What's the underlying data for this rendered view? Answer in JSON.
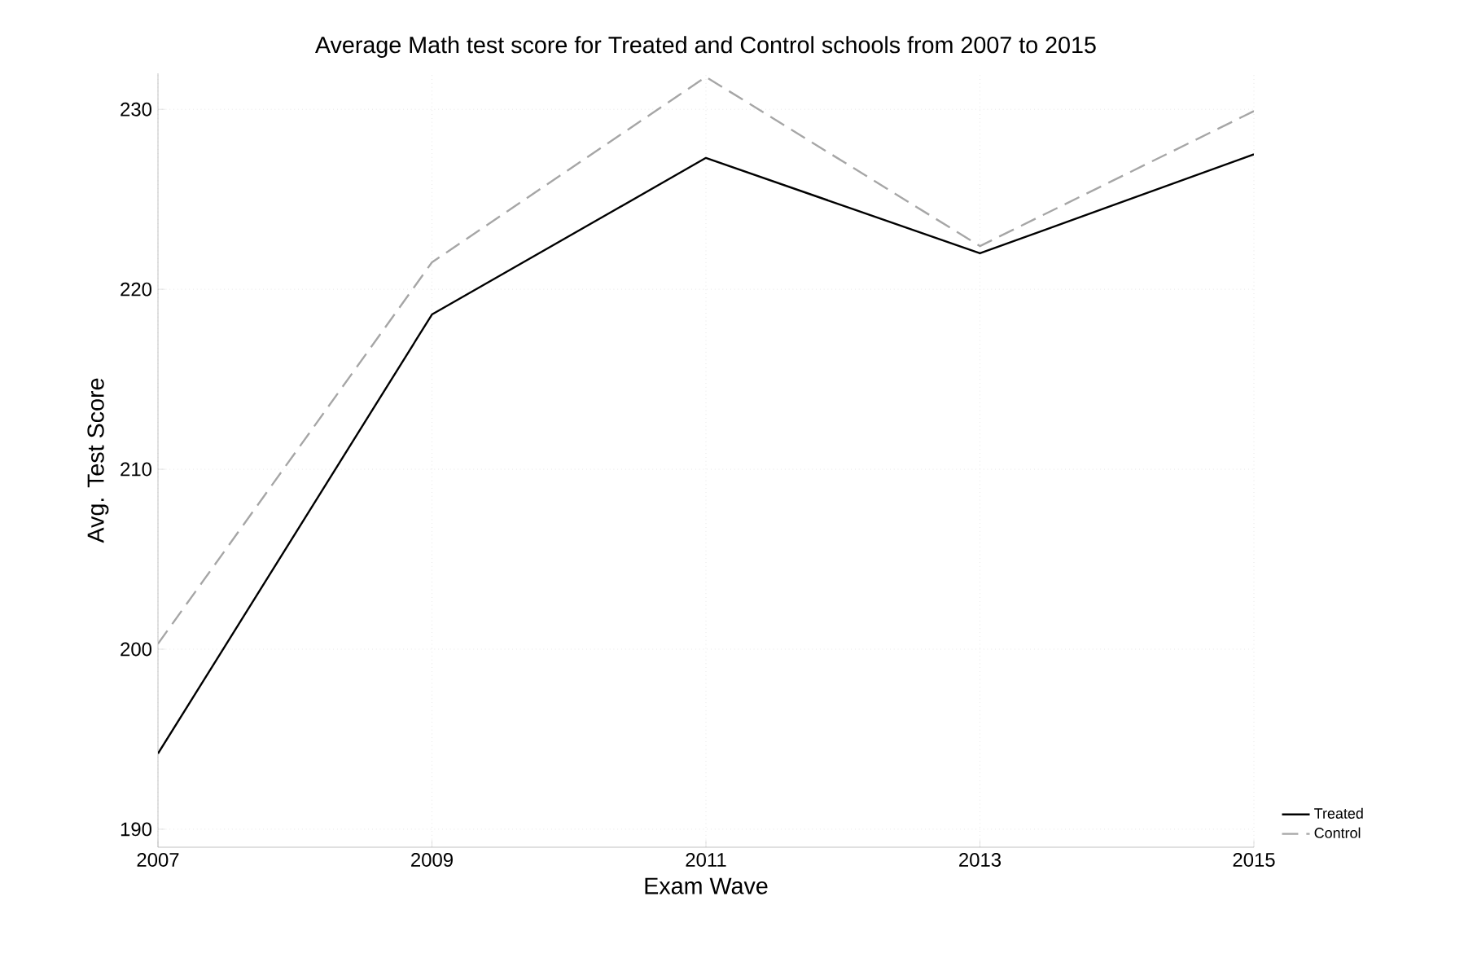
{
  "chart_data": {
    "type": "line",
    "title": "Average Math test score for Treated and Control schools from 2007 to 2015",
    "xlabel": "Exam Wave",
    "ylabel": "Avg. Test Score",
    "x": [
      2007,
      2009,
      2011,
      2013,
      2015
    ],
    "xlim": [
      2007,
      2015
    ],
    "xticks": [
      2007,
      2009,
      2011,
      2013,
      2015
    ],
    "ylim": [
      189,
      232
    ],
    "yticks": [
      190,
      200,
      210,
      220,
      230
    ],
    "grid": true,
    "legend": "bottom right",
    "series": [
      {
        "name": "Treated",
        "color": "#000000",
        "line_style": "solid",
        "values": [
          194.2,
          218.6,
          227.3,
          222.0,
          227.5
        ]
      },
      {
        "name": "Control",
        "color": "#a6a6a6",
        "line_style": "dashed",
        "values": [
          200.3,
          221.5,
          231.8,
          222.4,
          229.9
        ]
      }
    ]
  }
}
